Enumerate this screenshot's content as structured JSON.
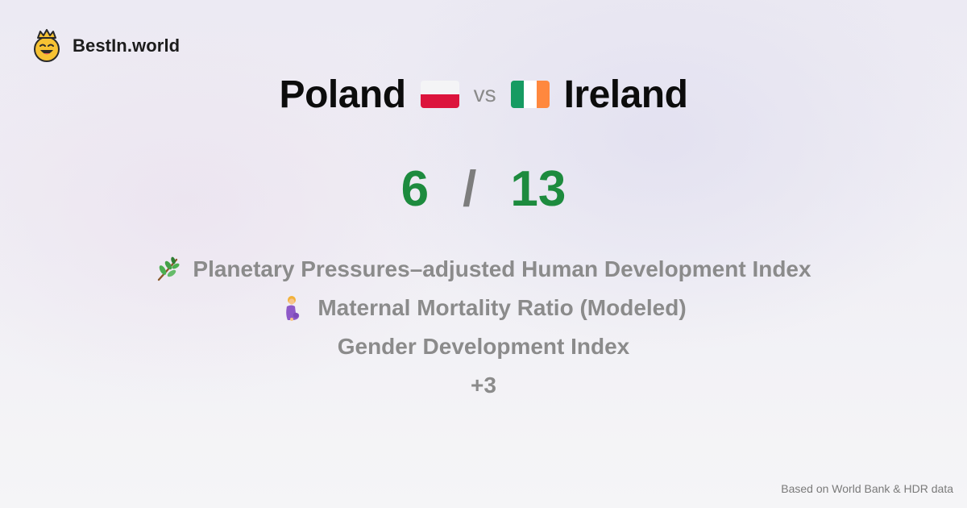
{
  "brand": {
    "name": "BestIn.world",
    "logo_icon": "crowned-smiley-icon"
  },
  "comparison": {
    "country_a": {
      "name": "Poland",
      "flag_icon": "flag-poland-icon"
    },
    "vs_label": "vs",
    "country_b": {
      "name": "Ireland",
      "flag_icon": "flag-ireland-icon"
    }
  },
  "score": {
    "left": "6",
    "separator": "/",
    "right": "13",
    "color": "#1d8b3e"
  },
  "metrics": [
    {
      "label": "Planetary Pressures–adjusted Human Development Index",
      "icon": "herb-icon"
    },
    {
      "label": "Maternal Mortality Ratio (Modeled)",
      "icon": "pregnant-woman-icon"
    },
    {
      "label": "Gender Development Index",
      "icon": ""
    }
  ],
  "more_label": "+3",
  "footer": {
    "source": "Based on World Bank & HDR data"
  }
}
